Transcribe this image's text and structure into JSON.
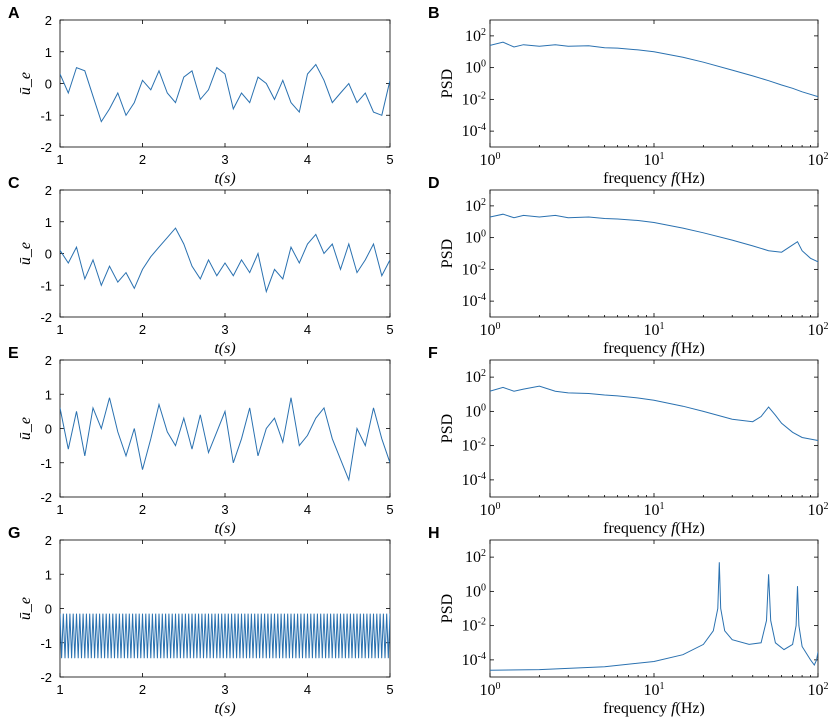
{
  "chart_data": [
    {
      "panel": "A",
      "type": "line",
      "xlabel": "t(s)",
      "ylabel": "ū_e",
      "xlim": [
        1,
        5
      ],
      "ylim": [
        -2,
        2
      ],
      "xticks": [
        "1",
        "2",
        "3",
        "4",
        "5"
      ],
      "yticks": [
        "2",
        "1",
        "0",
        "-1",
        "-2"
      ],
      "series": [
        {
          "name": "ū_e",
          "x": [
            1.0,
            1.1,
            1.2,
            1.3,
            1.4,
            1.5,
            1.6,
            1.7,
            1.8,
            1.9,
            2.0,
            2.1,
            2.2,
            2.3,
            2.4,
            2.5,
            2.6,
            2.7,
            2.8,
            2.9,
            3.0,
            3.1,
            3.2,
            3.3,
            3.4,
            3.5,
            3.6,
            3.7,
            3.8,
            3.9,
            4.0,
            4.1,
            4.2,
            4.3,
            4.4,
            4.5,
            4.6,
            4.7,
            4.8,
            4.9,
            5.0
          ],
          "values": [
            0.3,
            -0.3,
            0.5,
            0.4,
            -0.4,
            -1.2,
            -0.8,
            -0.3,
            -1.0,
            -0.6,
            0.1,
            -0.2,
            0.4,
            -0.3,
            -0.6,
            0.2,
            0.4,
            -0.5,
            -0.2,
            0.5,
            0.3,
            -0.8,
            -0.3,
            -0.6,
            0.2,
            0.0,
            -0.5,
            0.1,
            -0.6,
            -0.9,
            0.3,
            0.6,
            0.1,
            -0.6,
            -0.3,
            0.0,
            -0.6,
            -0.3,
            -0.9,
            -1.0,
            0.1
          ]
        }
      ]
    },
    {
      "panel": "B",
      "type": "line",
      "scale": "log-log",
      "xlabel": "frequency f(Hz)",
      "ylabel": "PSD",
      "xlim": [
        1,
        100
      ],
      "ylim": [
        1e-05,
        1000
      ],
      "xticks": [
        "10^0",
        "10^1",
        "10^2"
      ],
      "yticks": [
        "10^2",
        "10^0",
        "10^-2",
        "10^-4"
      ],
      "series": [
        {
          "name": "PSD",
          "x": [
            1.0,
            1.2,
            1.4,
            1.6,
            2.0,
            2.5,
            3.0,
            4.0,
            5.0,
            6.0,
            8.0,
            10.0,
            15.0,
            20.0,
            30.0,
            40.0,
            50.0,
            60.0,
            70.0,
            80.0,
            100.0
          ],
          "values": [
            25,
            40,
            20,
            28,
            22,
            28,
            22,
            24,
            18,
            17,
            13,
            10,
            4.5,
            2.2,
            0.7,
            0.3,
            0.15,
            0.08,
            0.05,
            0.03,
            0.015
          ]
        }
      ]
    },
    {
      "panel": "C",
      "type": "line",
      "xlabel": "t(s)",
      "ylabel": "ū_e",
      "xlim": [
        1,
        5
      ],
      "ylim": [
        -2,
        2
      ],
      "xticks": [
        "1",
        "2",
        "3",
        "4",
        "5"
      ],
      "yticks": [
        "2",
        "1",
        "0",
        "-1",
        "-2"
      ],
      "series": [
        {
          "name": "ū_e",
          "x": [
            1.0,
            1.1,
            1.2,
            1.3,
            1.4,
            1.5,
            1.6,
            1.7,
            1.8,
            1.9,
            2.0,
            2.1,
            2.2,
            2.3,
            2.4,
            2.5,
            2.6,
            2.7,
            2.8,
            2.9,
            3.0,
            3.1,
            3.2,
            3.3,
            3.4,
            3.5,
            3.6,
            3.7,
            3.8,
            3.9,
            4.0,
            4.1,
            4.2,
            4.3,
            4.4,
            4.5,
            4.6,
            4.7,
            4.8,
            4.9,
            5.0
          ],
          "values": [
            0.1,
            -0.3,
            0.2,
            -0.8,
            -0.2,
            -1.0,
            -0.4,
            -0.9,
            -0.6,
            -1.1,
            -0.5,
            -0.1,
            0.2,
            0.5,
            0.8,
            0.3,
            -0.4,
            -0.8,
            -0.2,
            -0.7,
            -0.3,
            -0.7,
            -0.2,
            -0.6,
            0.0,
            -1.2,
            -0.5,
            -0.8,
            0.2,
            -0.3,
            0.3,
            0.6,
            0.0,
            0.3,
            -0.5,
            0.3,
            -0.6,
            -0.2,
            0.3,
            -0.7,
            -0.2
          ]
        }
      ]
    },
    {
      "panel": "D",
      "type": "line",
      "scale": "log-log",
      "xlabel": "frequency f(Hz)",
      "ylabel": "PSD",
      "xlim": [
        1,
        100
      ],
      "ylim": [
        1e-05,
        1000
      ],
      "xticks": [
        "10^0",
        "10^1",
        "10^2"
      ],
      "yticks": [
        "10^2",
        "10^0",
        "10^-2",
        "10^-4"
      ],
      "series": [
        {
          "name": "PSD",
          "x": [
            1.0,
            1.2,
            1.4,
            1.6,
            2.0,
            2.5,
            3.0,
            4.0,
            5.0,
            6.0,
            8.0,
            10.0,
            15.0,
            20.0,
            30.0,
            40.0,
            50.0,
            60.0,
            70.0,
            75.0,
            80.0,
            90.0,
            100.0
          ],
          "values": [
            20,
            30,
            18,
            25,
            20,
            25,
            18,
            20,
            16,
            15,
            12,
            9,
            4.0,
            2.0,
            0.7,
            0.3,
            0.15,
            0.12,
            0.35,
            0.55,
            0.15,
            0.05,
            0.03
          ]
        }
      ]
    },
    {
      "panel": "E",
      "type": "line",
      "xlabel": "t(s)",
      "ylabel": "ū_e",
      "xlim": [
        1,
        5
      ],
      "ylim": [
        -2,
        2
      ],
      "xticks": [
        "1",
        "2",
        "3",
        "4",
        "5"
      ],
      "yticks": [
        "2",
        "1",
        "0",
        "-1",
        "-2"
      ],
      "series": [
        {
          "name": "ū_e",
          "x": [
            1.0,
            1.1,
            1.2,
            1.3,
            1.4,
            1.5,
            1.6,
            1.7,
            1.8,
            1.9,
            2.0,
            2.1,
            2.2,
            2.3,
            2.4,
            2.5,
            2.6,
            2.7,
            2.8,
            2.9,
            3.0,
            3.1,
            3.2,
            3.3,
            3.4,
            3.5,
            3.6,
            3.7,
            3.8,
            3.9,
            4.0,
            4.1,
            4.2,
            4.3,
            4.4,
            4.5,
            4.6,
            4.7,
            4.8,
            4.9,
            5.0
          ],
          "values": [
            0.6,
            -0.6,
            0.5,
            -0.8,
            0.6,
            0.0,
            0.9,
            -0.1,
            -0.8,
            0.0,
            -1.2,
            -0.3,
            0.7,
            -0.1,
            -0.5,
            0.3,
            -0.6,
            0.4,
            -0.7,
            -0.1,
            0.5,
            -1.0,
            -0.3,
            0.6,
            -0.8,
            0.0,
            0.3,
            -0.4,
            0.9,
            -0.5,
            -0.2,
            0.3,
            0.6,
            -0.3,
            -0.9,
            -1.5,
            0.0,
            -0.5,
            0.6,
            -0.3,
            -1.0
          ]
        }
      ]
    },
    {
      "panel": "F",
      "type": "line",
      "scale": "log-log",
      "xlabel": "frequency f(Hz)",
      "ylabel": "PSD",
      "xlim": [
        1,
        100
      ],
      "ylim": [
        1e-05,
        1000
      ],
      "xticks": [
        "10^0",
        "10^1",
        "10^2"
      ],
      "yticks": [
        "10^2",
        "10^0",
        "10^-2",
        "10^-4"
      ],
      "series": [
        {
          "name": "PSD",
          "x": [
            1.0,
            1.2,
            1.4,
            1.6,
            2.0,
            2.5,
            3.0,
            4.0,
            5.0,
            6.0,
            8.0,
            10.0,
            15.0,
            20.0,
            30.0,
            40.0,
            45.0,
            50.0,
            55.0,
            60.0,
            70.0,
            80.0,
            100.0
          ],
          "values": [
            15,
            25,
            15,
            20,
            30,
            15,
            12,
            11,
            9,
            8,
            6,
            4.5,
            2.0,
            1.0,
            0.35,
            0.25,
            0.5,
            1.8,
            0.6,
            0.2,
            0.06,
            0.03,
            0.02
          ]
        }
      ]
    },
    {
      "panel": "G",
      "type": "line",
      "xlabel": "t(s)",
      "ylabel": "ū_e",
      "xlim": [
        1,
        5
      ],
      "ylim": [
        -2,
        2
      ],
      "xticks": [
        "1",
        "2",
        "3",
        "4",
        "5"
      ],
      "yticks": [
        "2",
        "1",
        "0",
        "-1",
        "-2"
      ],
      "oscillation": {
        "frequency_hz": 25,
        "max": -0.15,
        "min": -1.45
      }
    },
    {
      "panel": "H",
      "type": "line",
      "scale": "log-log",
      "xlabel": "frequency f(Hz)",
      "ylabel": "PSD",
      "xlim": [
        1,
        100
      ],
      "ylim": [
        1e-05,
        1000
      ],
      "xticks": [
        "10^0",
        "10^1",
        "10^2"
      ],
      "yticks": [
        "10^2",
        "10^0",
        "10^-2",
        "10^-4"
      ],
      "series": [
        {
          "name": "PSD",
          "x": [
            1.0,
            2.0,
            5.0,
            10.0,
            15.0,
            20.0,
            23.0,
            24.5,
            25.0,
            25.5,
            27.0,
            30.0,
            38.0,
            45.0,
            48.5,
            50.0,
            51.5,
            55.0,
            62.0,
            70.0,
            73.5,
            75.0,
            76.5,
            80.0,
            90.0,
            95.0,
            98.0,
            100.0
          ],
          "values": [
            2.5e-05,
            2.7e-05,
            4e-05,
            8e-05,
            0.0002,
            0.0008,
            0.005,
            0.1,
            50,
            0.1,
            0.005,
            0.0015,
            0.0008,
            0.001,
            0.02,
            10,
            0.02,
            0.001,
            0.0004,
            0.0008,
            0.01,
            2,
            0.01,
            0.0006,
            0.0001,
            5e-05,
            0.0001,
            0.0003
          ]
        }
      ]
    }
  ]
}
